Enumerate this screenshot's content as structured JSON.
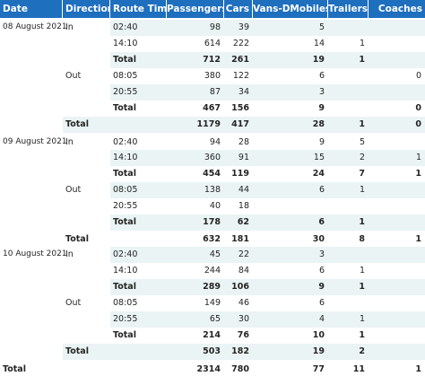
{
  "colors": {
    "header_bg": "#1f6fbf",
    "header_text": "#ffffff",
    "band_light": "#eaf4f4",
    "text": "#252423"
  },
  "columns": [
    "Date",
    "Direction",
    "Route Time",
    "Passengers",
    "Cars",
    "Vans-DMobiles",
    "Trailers",
    "Coaches"
  ],
  "rows": [
    {
      "date": "08 August 2021",
      "direction": "In",
      "time": "02:40",
      "passengers": "98",
      "cars": "39",
      "vans": "5",
      "trailers": "",
      "coaches": "",
      "kind": "detail",
      "band": true
    },
    {
      "date": "",
      "direction": "",
      "time": "14:10",
      "passengers": "614",
      "cars": "222",
      "vans": "14",
      "trailers": "1",
      "coaches": "",
      "kind": "detail",
      "band": false
    },
    {
      "date": "",
      "direction": "",
      "time": "Total",
      "passengers": "712",
      "cars": "261",
      "vans": "19",
      "trailers": "1",
      "coaches": "",
      "kind": "subtotal",
      "band": true
    },
    {
      "date": "",
      "direction": "Out",
      "time": "08:05",
      "passengers": "380",
      "cars": "122",
      "vans": "6",
      "trailers": "",
      "coaches": "0",
      "kind": "detail",
      "band": false
    },
    {
      "date": "",
      "direction": "",
      "time": "20:55",
      "passengers": "87",
      "cars": "34",
      "vans": "3",
      "trailers": "",
      "coaches": "",
      "kind": "detail",
      "band": true
    },
    {
      "date": "",
      "direction": "",
      "time": "Total",
      "passengers": "467",
      "cars": "156",
      "vans": "9",
      "trailers": "",
      "coaches": "0",
      "kind": "subtotal",
      "band": false
    },
    {
      "date": "",
      "direction": "Total",
      "time": "",
      "passengers": "1179",
      "cars": "417",
      "vans": "28",
      "trailers": "1",
      "coaches": "0",
      "kind": "datetotal",
      "band": true
    },
    {
      "date": "09 August 2021",
      "direction": "In",
      "time": "02:40",
      "passengers": "94",
      "cars": "28",
      "vans": "9",
      "trailers": "5",
      "coaches": "",
      "kind": "detail",
      "band": false
    },
    {
      "date": "",
      "direction": "",
      "time": "14:10",
      "passengers": "360",
      "cars": "91",
      "vans": "15",
      "trailers": "2",
      "coaches": "1",
      "kind": "detail",
      "band": true
    },
    {
      "date": "",
      "direction": "",
      "time": "Total",
      "passengers": "454",
      "cars": "119",
      "vans": "24",
      "trailers": "7",
      "coaches": "1",
      "kind": "subtotal",
      "band": false
    },
    {
      "date": "",
      "direction": "Out",
      "time": "08:05",
      "passengers": "138",
      "cars": "44",
      "vans": "6",
      "trailers": "1",
      "coaches": "",
      "kind": "detail",
      "band": true
    },
    {
      "date": "",
      "direction": "",
      "time": "20:55",
      "passengers": "40",
      "cars": "18",
      "vans": "",
      "trailers": "",
      "coaches": "",
      "kind": "detail",
      "band": false
    },
    {
      "date": "",
      "direction": "",
      "time": "Total",
      "passengers": "178",
      "cars": "62",
      "vans": "6",
      "trailers": "1",
      "coaches": "",
      "kind": "subtotal",
      "band": true
    },
    {
      "date": "",
      "direction": "Total",
      "time": "",
      "passengers": "632",
      "cars": "181",
      "vans": "30",
      "trailers": "8",
      "coaches": "1",
      "kind": "datetotal",
      "band": false
    },
    {
      "date": "10 August 2021",
      "direction": "In",
      "time": "02:40",
      "passengers": "45",
      "cars": "22",
      "vans": "3",
      "trailers": "",
      "coaches": "",
      "kind": "detail",
      "band": true
    },
    {
      "date": "",
      "direction": "",
      "time": "14:10",
      "passengers": "244",
      "cars": "84",
      "vans": "6",
      "trailers": "1",
      "coaches": "",
      "kind": "detail",
      "band": false
    },
    {
      "date": "",
      "direction": "",
      "time": "Total",
      "passengers": "289",
      "cars": "106",
      "vans": "9",
      "trailers": "1",
      "coaches": "",
      "kind": "subtotal",
      "band": true
    },
    {
      "date": "",
      "direction": "Out",
      "time": "08:05",
      "passengers": "149",
      "cars": "46",
      "vans": "6",
      "trailers": "",
      "coaches": "",
      "kind": "detail",
      "band": false
    },
    {
      "date": "",
      "direction": "",
      "time": "20:55",
      "passengers": "65",
      "cars": "30",
      "vans": "4",
      "trailers": "1",
      "coaches": "",
      "kind": "detail",
      "band": true
    },
    {
      "date": "",
      "direction": "",
      "time": "Total",
      "passengers": "214",
      "cars": "76",
      "vans": "10",
      "trailers": "1",
      "coaches": "",
      "kind": "subtotal",
      "band": false
    },
    {
      "date": "",
      "direction": "Total",
      "time": "",
      "passengers": "503",
      "cars": "182",
      "vans": "19",
      "trailers": "2",
      "coaches": "",
      "kind": "datetotal",
      "band": true
    },
    {
      "date": "Total",
      "direction": "",
      "time": "",
      "passengers": "2314",
      "cars": "780",
      "vans": "77",
      "trailers": "11",
      "coaches": "1",
      "kind": "grandtotal",
      "band": false
    }
  ]
}
